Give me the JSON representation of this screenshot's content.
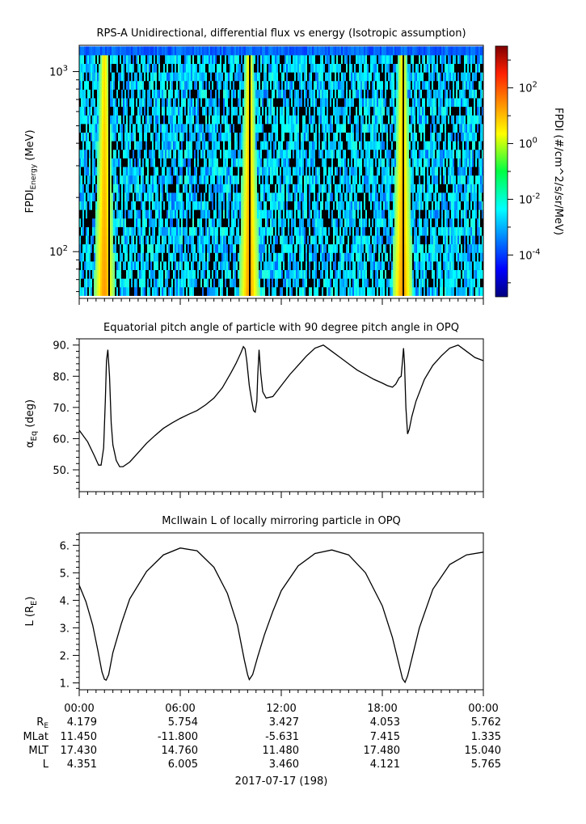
{
  "chart_data": [
    {
      "type": "heatmap",
      "title": "RPS-A Unidirectional, differential flux vs energy (Isotropic assumption)",
      "ylabel_main": "FPDI",
      "ylabel_sub": "Energy",
      "ylabel_unit": " (MeV)",
      "yscale": "log",
      "ylim": [
        55,
        1400
      ],
      "y_ticks": [
        {
          "value": 100,
          "base": "10",
          "exp": "2"
        },
        {
          "value": 1000,
          "base": "10",
          "exp": "3"
        }
      ],
      "colorbar": {
        "label": "FPDI (#/cm^2/s/sr/MeV)",
        "scale": "log",
        "range_log10": [
          -5.5,
          3.5
        ],
        "ticks": [
          {
            "value": 2,
            "base": "10",
            "exp": "2"
          },
          {
            "value": 0,
            "base": "10",
            "exp": "0"
          },
          {
            "value": -2,
            "base": "10",
            "exp": "-2"
          },
          {
            "value": -4,
            "base": "10",
            "exp": "-4"
          }
        ]
      },
      "high_flux_hours": [
        1.5,
        10.1,
        19.2
      ],
      "gap_hours": [
        1.75,
        10.15,
        19.25
      ]
    },
    {
      "type": "line",
      "title": "Equatorial pitch angle of particle with 90 degree pitch angle in OPQ",
      "ylabel": "αEq (deg)",
      "ylabel_main": "α",
      "ylabel_sub": "Eq",
      "ylabel_unit": " (deg)",
      "ylim": [
        43,
        92
      ],
      "y_ticks": [
        50,
        60,
        70,
        80,
        90
      ],
      "y_tick_labels": [
        "50.",
        "60.",
        "70.",
        "80.",
        "90."
      ],
      "xlim_hours": [
        0,
        24
      ],
      "series": [
        {
          "x": [
            0,
            0.5,
            0.9,
            1.15,
            1.3,
            1.45,
            1.55,
            1.62,
            1.7,
            1.8,
            1.9,
            2.0,
            2.2,
            2.4,
            2.6,
            3.0,
            3.5,
            4.0,
            4.5,
            5.0,
            5.5,
            6.0,
            6.5,
            7.0,
            7.5,
            8.0,
            8.5,
            9.0,
            9.3,
            9.6,
            9.75,
            9.85,
            9.95,
            10.1,
            10.25,
            10.35,
            10.45,
            10.55,
            10.6,
            10.68,
            10.78,
            10.9,
            11.1,
            11.5,
            12.0,
            12.5,
            13.0,
            13.5,
            14.0,
            14.5,
            15.0,
            15.5,
            16.0,
            16.5,
            17.0,
            17.5,
            18.0,
            18.3,
            18.6,
            18.8,
            19.0,
            19.12,
            19.2,
            19.26,
            19.32,
            19.4,
            19.5,
            19.6,
            19.75,
            20.0,
            20.5,
            21.0,
            21.5,
            22.0,
            22.5,
            23.0,
            23.5,
            24.0
          ],
          "y": [
            62.7,
            59.0,
            54.5,
            51.5,
            51.5,
            57.0,
            72.0,
            85.0,
            88.5,
            80.0,
            65.0,
            58.0,
            53.0,
            51.0,
            51.0,
            52.5,
            55.5,
            58.5,
            61.0,
            63.3,
            65.0,
            66.5,
            67.8,
            69.0,
            70.8,
            73.0,
            76.3,
            81.0,
            84.0,
            87.5,
            89.5,
            88.8,
            85.0,
            77.0,
            72.0,
            69.0,
            68.5,
            72.0,
            80.0,
            88.5,
            81.0,
            75.0,
            73.0,
            73.5,
            77.0,
            80.5,
            83.5,
            86.5,
            89.0,
            90.0,
            88.0,
            86.0,
            84.0,
            82.0,
            80.5,
            79.0,
            77.8,
            77.0,
            76.5,
            77.5,
            79.5,
            80.0,
            85.0,
            89.0,
            84.0,
            70.0,
            61.5,
            63.0,
            67.0,
            72.0,
            79.0,
            83.5,
            86.5,
            89.0,
            90.0,
            88.0,
            86.0,
            85.0
          ]
        }
      ]
    },
    {
      "type": "line",
      "title": "McIlwain L of locally mirroring particle in OPQ",
      "ylabel": "L (RE)",
      "ylabel_main": "L (R",
      "ylabel_sub": "E",
      "ylabel_unit": ")",
      "ylim": [
        0.75,
        6.45
      ],
      "y_ticks": [
        1,
        2,
        3,
        4,
        5,
        6
      ],
      "y_tick_labels": [
        "1.",
        "2.",
        "3.",
        "4.",
        "5.",
        "6."
      ],
      "xlim_hours": [
        0,
        24
      ],
      "series": [
        {
          "x": [
            0,
            0.4,
            0.8,
            1.1,
            1.35,
            1.5,
            1.6,
            1.75,
            2.0,
            2.5,
            3.0,
            4.0,
            5.0,
            6.0,
            7.0,
            8.0,
            8.8,
            9.4,
            9.8,
            10.0,
            10.1,
            10.3,
            10.6,
            11.0,
            11.5,
            12.0,
            13.0,
            14.0,
            15.0,
            16.0,
            17.0,
            18.0,
            18.6,
            19.0,
            19.2,
            19.35,
            19.5,
            19.8,
            20.2,
            21.0,
            22.0,
            23.0,
            24.0
          ],
          "y": [
            4.55,
            3.95,
            3.1,
            2.2,
            1.4,
            1.13,
            1.1,
            1.3,
            2.1,
            3.15,
            4.05,
            5.05,
            5.65,
            5.9,
            5.8,
            5.2,
            4.25,
            3.1,
            1.85,
            1.3,
            1.12,
            1.3,
            1.95,
            2.75,
            3.6,
            4.35,
            5.25,
            5.7,
            5.83,
            5.65,
            5.0,
            3.8,
            2.65,
            1.65,
            1.15,
            1.02,
            1.25,
            2.0,
            3.0,
            4.4,
            5.3,
            5.65,
            5.75
          ]
        }
      ]
    }
  ],
  "x_ticks": {
    "hours": [
      0,
      6,
      12,
      18,
      24
    ],
    "labels": [
      "00:00",
      "06:00",
      "12:00",
      "18:00",
      "00:00"
    ]
  },
  "ephemeris": {
    "rows": [
      {
        "label": "R",
        "label_sub": "E",
        "values": [
          "4.179",
          "5.754",
          "3.427",
          "4.053",
          "5.762"
        ]
      },
      {
        "label": "MLat",
        "label_sub": "",
        "values": [
          "11.450",
          "-11.800",
          "-5.631",
          "7.415",
          "1.335"
        ]
      },
      {
        "label": "MLT",
        "label_sub": "",
        "values": [
          "17.430",
          "14.760",
          "11.480",
          "17.480",
          "15.040"
        ]
      },
      {
        "label": "L",
        "label_sub": "",
        "values": [
          "4.351",
          "6.005",
          "3.460",
          "4.121",
          "5.765"
        ]
      }
    ]
  },
  "date_label": "2017-07-17 (198)"
}
